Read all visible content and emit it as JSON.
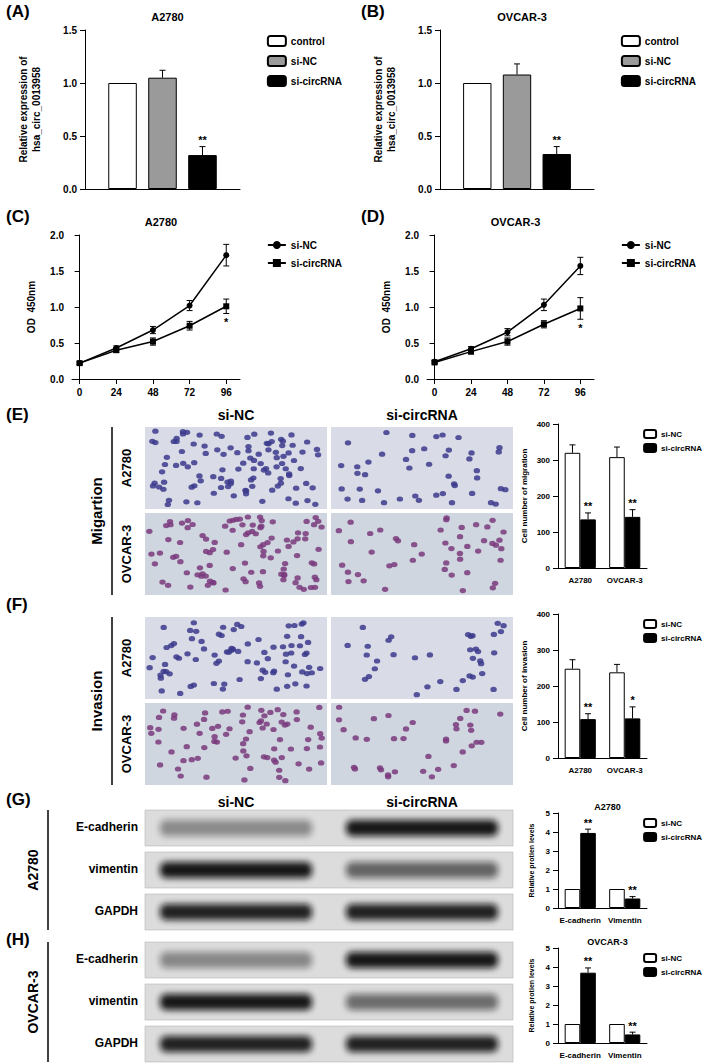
{
  "chart_data": [
    {
      "panel": "(A)",
      "type": "bar",
      "title": "A2780",
      "ylabel": "Relative expression of\nhsa_circ_0013958",
      "categories": [
        null
      ],
      "series": [
        {
          "name": "control",
          "color": "#ffffff",
          "values": [
            1.0
          ],
          "errors": [
            0
          ],
          "marks": [
            null
          ]
        },
        {
          "name": "si-NC",
          "color": "#9a9a9a",
          "values": [
            1.05
          ],
          "errors": [
            0.07
          ],
          "marks": [
            null
          ]
        },
        {
          "name": "si-circRNA",
          "color": "#000000",
          "values": [
            0.32
          ],
          "errors": [
            0.08
          ],
          "marks": [
            "**"
          ]
        }
      ],
      "ylim": [
        0,
        1.5
      ],
      "yticks": [
        {
          "value": 0,
          "label": "0.0"
        },
        0.5,
        {
          "value": 1,
          "label": "1.0"
        },
        1.5
      ],
      "legend": "right",
      "tick_labels": "y",
      "grid": false
    },
    {
      "panel": "(B)",
      "type": "bar",
      "title": "OVCAR-3",
      "ylabel": "Relative expression of\nhsa_circ_0013958",
      "categories": [
        null
      ],
      "series": [
        {
          "name": "control",
          "color": "#ffffff",
          "values": [
            1.0
          ],
          "errors": [
            0
          ],
          "marks": [
            null
          ]
        },
        {
          "name": "si-NC",
          "color": "#9a9a9a",
          "values": [
            1.08
          ],
          "errors": [
            0.1
          ],
          "marks": [
            null
          ]
        },
        {
          "name": "si-circRNA",
          "color": "#000000",
          "values": [
            0.33
          ],
          "errors": [
            0.07
          ],
          "marks": [
            "**"
          ]
        }
      ],
      "ylim": [
        0,
        1.5
      ],
      "yticks": [
        {
          "value": 0,
          "label": "0.0"
        },
        0.5,
        {
          "value": 1,
          "label": "1.0"
        },
        1.5
      ],
      "legend": "right",
      "tick_labels": "y",
      "grid": false
    },
    {
      "panel": "(C)",
      "type": "line",
      "title": "A2780",
      "ylabel": "OD  450nm",
      "x": [
        0,
        24,
        48,
        72,
        96
      ],
      "series": [
        {
          "name": "si-NC",
          "color": "#000000",
          "marker": "circle",
          "values": [
            0.22,
            0.43,
            0.68,
            1.02,
            1.72
          ],
          "errors": [
            0.02,
            0.03,
            0.05,
            0.07,
            0.15
          ],
          "marks": [
            null,
            null,
            null,
            null,
            null
          ]
        },
        {
          "name": "si-circRNA",
          "color": "#000000",
          "marker": "square",
          "values": [
            0.22,
            0.4,
            0.52,
            0.74,
            1.01
          ],
          "errors": [
            0.02,
            0.03,
            0.05,
            0.06,
            0.1
          ],
          "marks": [
            null,
            null,
            null,
            null,
            "*"
          ]
        }
      ],
      "xlim": [
        -5,
        105
      ],
      "xticks": [
        0,
        24,
        48,
        72,
        96
      ],
      "ylim": [
        0,
        2
      ],
      "yticks": [
        {
          "value": 0,
          "label": "0.0"
        },
        0.5,
        {
          "value": 1,
          "label": "1.0"
        },
        1.5,
        {
          "value": 2,
          "label": "2.0"
        }
      ],
      "legend": "right",
      "grid": false
    },
    {
      "panel": "(D)",
      "type": "line",
      "title": "OVCAR-3",
      "ylabel": "OD  450nm",
      "x": [
        0,
        24,
        48,
        72,
        96
      ],
      "series": [
        {
          "name": "si-NC",
          "color": "#000000",
          "marker": "circle",
          "values": [
            0.24,
            0.42,
            0.65,
            1.03,
            1.57
          ],
          "errors": [
            0.02,
            0.03,
            0.05,
            0.08,
            0.12
          ],
          "marks": [
            null,
            null,
            null,
            null,
            null
          ]
        },
        {
          "name": "si-circRNA",
          "color": "#000000",
          "marker": "square",
          "values": [
            0.23,
            0.38,
            0.52,
            0.76,
            0.98
          ],
          "errors": [
            0.02,
            0.03,
            0.05,
            0.05,
            0.15
          ],
          "marks": [
            null,
            null,
            null,
            null,
            "*"
          ]
        }
      ],
      "xlim": [
        -5,
        105
      ],
      "xticks": [
        0,
        24,
        48,
        72,
        96
      ],
      "ylim": [
        0,
        2
      ],
      "yticks": [
        {
          "value": 0,
          "label": "0.0"
        },
        0.5,
        {
          "value": 1,
          "label": "1.0"
        },
        1.5,
        {
          "value": 2,
          "label": "2.0"
        }
      ],
      "legend": "right",
      "grid": false
    },
    {
      "type": "bar",
      "ylabel": "Cell number of migration",
      "categories": [
        "A2780",
        "OVCAR-3"
      ],
      "series": [
        {
          "name": "si-NC",
          "color": "#ffffff",
          "values": [
            320,
            308
          ],
          "errors": [
            22,
            28
          ],
          "marks": [
            null,
            null
          ]
        },
        {
          "name": "si-circRNA",
          "color": "#000000",
          "values": [
            135,
            142
          ],
          "errors": [
            18,
            20
          ],
          "marks": [
            "**",
            "**"
          ]
        }
      ],
      "ylim": [
        0,
        400
      ],
      "yticks": [
        0,
        100,
        200,
        300,
        400
      ],
      "legend": "right",
      "grid": false
    },
    {
      "type": "bar",
      "ylabel": "Cell number of invasion",
      "categories": [
        "A2780",
        "OVCAR-3"
      ],
      "series": [
        {
          "name": "si-NC",
          "color": "#ffffff",
          "values": [
            248,
            238
          ],
          "errors": [
            25,
            22
          ],
          "marks": [
            null,
            null
          ]
        },
        {
          "name": "si-circRNA",
          "color": "#000000",
          "values": [
            108,
            110
          ],
          "errors": [
            15,
            32
          ],
          "marks": [
            "**",
            "*"
          ]
        }
      ],
      "ylim": [
        0,
        400
      ],
      "yticks": [
        0,
        100,
        200,
        300,
        400
      ],
      "legend": "right",
      "grid": false
    },
    {
      "type": "bar",
      "title": "A2780",
      "ylabel": "Relative protien levels",
      "categories": [
        "E-cadherin",
        "Vimentin"
      ],
      "series": [
        {
          "name": "si-NC",
          "color": "#ffffff",
          "values": [
            1,
            1
          ],
          "errors": [
            0,
            0
          ],
          "marks": [
            null,
            null
          ]
        },
        {
          "name": "si-circRNA",
          "color": "#000000",
          "values": [
            3.95,
            0.5
          ],
          "errors": [
            0.2,
            0.1
          ],
          "marks": [
            "**",
            "**"
          ]
        }
      ],
      "ylim": [
        0,
        5
      ],
      "yticks": [
        0,
        1,
        2,
        3,
        4,
        5
      ],
      "legend": "right",
      "grid": false
    },
    {
      "type": "bar",
      "title": "OVCAR-3",
      "ylabel": "Relative protien levels",
      "categories": [
        "E-cadherin",
        "Vimentin"
      ],
      "series": [
        {
          "name": "si-NC",
          "color": "#ffffff",
          "values": [
            1,
            1
          ],
          "errors": [
            0,
            0
          ],
          "marks": [
            null,
            null
          ]
        },
        {
          "name": "si-circRNA",
          "color": "#000000",
          "values": [
            3.7,
            0.45
          ],
          "errors": [
            0.25,
            0.12
          ],
          "marks": [
            "**",
            "**"
          ]
        }
      ],
      "ylim": [
        0,
        5
      ],
      "yticks": [
        0,
        1,
        2,
        3,
        4,
        5
      ],
      "legend": "right",
      "grid": false
    }
  ],
  "figure": {
    "micrographs": {
      "columns": [
        "si-NC",
        "si-circRNA"
      ],
      "groups": [
        {
          "panel": "(E)",
          "label": "Migartion",
          "rows": [
            "A2780",
            "OVCAR-3"
          ]
        },
        {
          "panel": "(F)",
          "label": "Invasion",
          "rows": [
            "A2780",
            "OVCAR-3"
          ]
        }
      ]
    },
    "blots": {
      "columns": [
        "si-NC",
        "si-circRNA"
      ],
      "groups": [
        {
          "panel": "(G)",
          "cell_line": "A2780",
          "rows": [
            "E-cadherin",
            "vimentin",
            "GAPDH"
          ]
        },
        {
          "panel": "(H)",
          "cell_line": "OVCAR-3",
          "rows": [
            "E-cadherin",
            "vimentin",
            "GAPDH"
          ]
        }
      ]
    }
  }
}
